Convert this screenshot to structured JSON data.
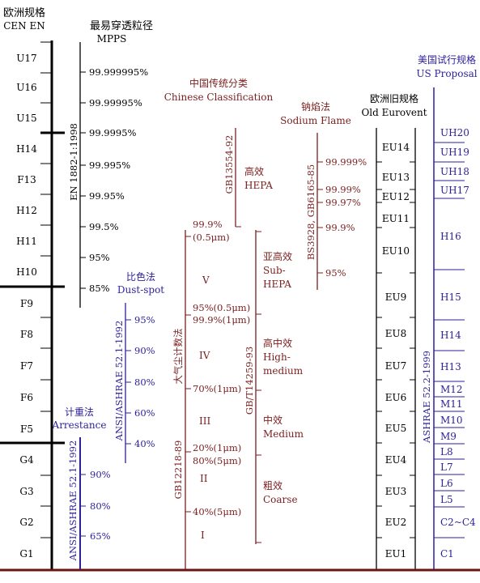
{
  "colors": {
    "black": "#000000",
    "blue": "#2b1f9c",
    "brown": "#7a1e1e",
    "baseline": "#6b1414"
  },
  "cen": {
    "title_cn": "欧洲规格",
    "title_en": "CEN EN",
    "classes": [
      "U17",
      "U16",
      "U15",
      "H14",
      "F13",
      "H12",
      "H11",
      "H10",
      "F9",
      "F8",
      "F7",
      "F6",
      "F5",
      "G4",
      "G3",
      "G2",
      "G1"
    ]
  },
  "mpps": {
    "title_cn": "最易穿透粒径",
    "title_en": "MPPS",
    "standard": "EN 1882-1:1998",
    "values": [
      "99.999995%",
      "99.99995%",
      "99.9995%",
      "99.995%",
      "99.95%",
      "99.5%",
      "95%",
      "85%"
    ]
  },
  "dustspot": {
    "title_cn": "比色法",
    "title_en": "Dust-spot",
    "standard": "ANSI/ASHRAE 52.1-1992",
    "values": [
      "95%",
      "90%",
      "80%",
      "60%",
      "40%"
    ]
  },
  "arrestance": {
    "title_cn": "计重法",
    "title_en": "Arrestance",
    "standard": "ANSI/ASHRAE 52.1-1992",
    "values": [
      "90%",
      "80%",
      "65%"
    ]
  },
  "chinese": {
    "title_cn": "中国传统分类",
    "title_en": "Chinese Classification",
    "gb12218": "GB12218-89",
    "gb12218_cn": "大气尘计数法",
    "gb13554": "GB13554-92",
    "gb14259": "GB/T14259-93",
    "grades": [
      "V",
      "IV",
      "III",
      "II",
      "I"
    ],
    "points": [
      "99.9%",
      "(0.5μm)",
      "95%(0.5μm)",
      "99.9%(1μm)",
      "70%(1μm)",
      "20%(1μm)",
      "80%(5μm)",
      "40%(5μm)"
    ],
    "categories": {
      "hepa_cn": "高效",
      "hepa_en": "HEPA",
      "subhepa_cn": "亚高效",
      "subhepa_en1": "Sub-",
      "subhepa_en2": "HEPA",
      "highmed_cn": "高中效",
      "highmed_en1": "High-",
      "highmed_en2": "medium",
      "medium_cn": "中效",
      "medium_en": "Medium",
      "coarse_cn": "粗效",
      "coarse_en": "Coarse"
    }
  },
  "sodium": {
    "title_cn": "钠焰法",
    "title_en": "Sodium Flame",
    "standard": "BS3928, GB6165-85",
    "values": [
      "99.999%",
      "99.99%",
      "99.97%",
      "99.9%",
      "95%"
    ]
  },
  "eurovent": {
    "title_cn": "欧洲旧规格",
    "title_en": "Old Eurovent",
    "classes": [
      "EU14",
      "EU13",
      "EU12",
      "EU11",
      "EU10",
      "EU9",
      "EU8",
      "EU7",
      "EU6",
      "EU5",
      "EU4",
      "EU3",
      "EU2",
      "EU1"
    ]
  },
  "us": {
    "title_cn": "美国试行规格",
    "title_en": "US Proposal",
    "standard": "ASHRAE 52.2-1999",
    "classes": [
      "UH20",
      "UH19",
      "UH18",
      "UH17",
      "H16",
      "H15",
      "H14",
      "H13",
      "M12",
      "M11",
      "M10",
      "M9",
      "L8",
      "L7",
      "L6",
      "L5",
      "C2~C4",
      "C1"
    ]
  }
}
